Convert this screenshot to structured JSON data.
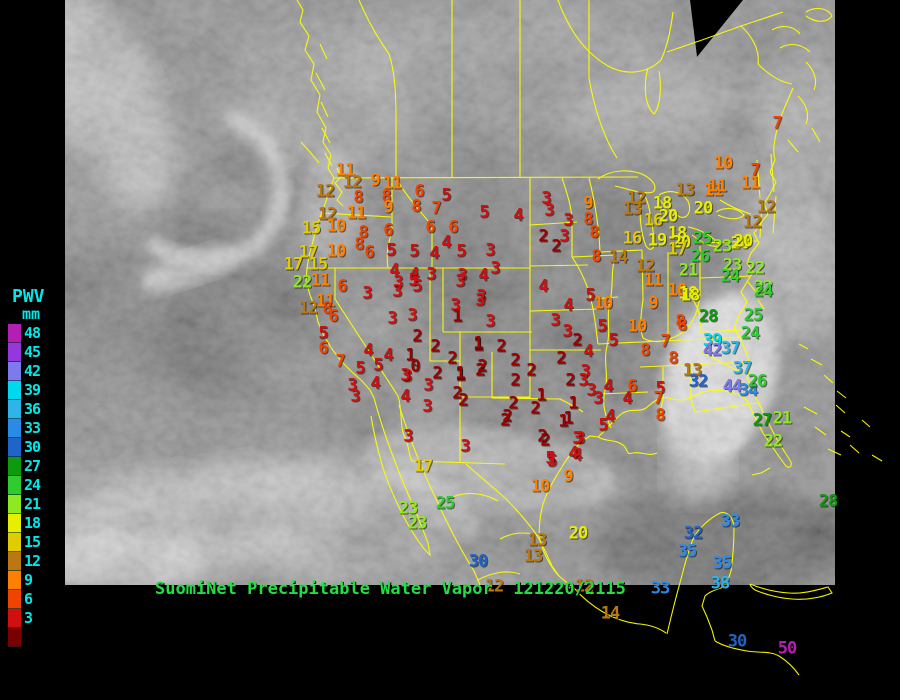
{
  "legend": {
    "title": "PWV",
    "unit": "mm",
    "text_color": "#00e8e8",
    "rows": [
      {
        "color": "#b31fb3",
        "label": "48"
      },
      {
        "color": "#9437dd",
        "label": "45"
      },
      {
        "color": "#7b7bee",
        "label": "42"
      },
      {
        "color": "#00d8ee",
        "label": "39"
      },
      {
        "color": "#2fb4e8",
        "label": "36"
      },
      {
        "color": "#2b8ae8",
        "label": "33"
      },
      {
        "color": "#1f64c8",
        "label": "30"
      },
      {
        "color": "#0e9a0e",
        "label": "27"
      },
      {
        "color": "#2ecc2e",
        "label": "24"
      },
      {
        "color": "#8ee822",
        "label": "21"
      },
      {
        "color": "#e8ee00",
        "label": "18"
      },
      {
        "color": "#e0cc00",
        "label": "15"
      },
      {
        "color": "#bb7711",
        "label": "12"
      },
      {
        "color": "#ff7f00",
        "label": "9"
      },
      {
        "color": "#ee4400",
        "label": "6"
      },
      {
        "color": "#d01010",
        "label": "3"
      },
      {
        "color": "#7a0000",
        "label": ""
      }
    ],
    "scale": [
      {
        "min": -9,
        "color": "#9b0000"
      },
      {
        "min": 3,
        "color": "#d01010"
      },
      {
        "min": 6,
        "color": "#ee4400"
      },
      {
        "min": 9,
        "color": "#ff7f00"
      },
      {
        "min": 12,
        "color": "#bb7711"
      },
      {
        "min": 15,
        "color": "#e0cc00"
      },
      {
        "min": 18,
        "color": "#e8ee00"
      },
      {
        "min": 21,
        "color": "#8ee822"
      },
      {
        "min": 24,
        "color": "#2ecc2e"
      },
      {
        "min": 27,
        "color": "#0e9a0e"
      },
      {
        "min": 30,
        "color": "#1f64c8"
      },
      {
        "min": 33,
        "color": "#2b8ae8"
      },
      {
        "min": 36,
        "color": "#2fb4e8"
      },
      {
        "min": 39,
        "color": "#00d8ee"
      },
      {
        "min": 42,
        "color": "#7b7bee"
      },
      {
        "min": 45,
        "color": "#9437dd"
      },
      {
        "min": 48,
        "color": "#b31fb3"
      }
    ]
  },
  "title": {
    "text": "SuomiNet Precipitable Water Vapor",
    "timestamp": "121220/2115",
    "color": "#22dd44"
  },
  "map": {
    "line_color": "#ffff00"
  },
  "stations": [
    [
      345,
      171,
      11
    ],
    [
      352,
      183,
      12
    ],
    [
      375,
      181,
      9
    ],
    [
      392,
      184,
      11
    ],
    [
      419,
      192,
      6
    ],
    [
      446,
      196,
      5
    ],
    [
      325,
      192,
      12
    ],
    [
      358,
      198,
      8
    ],
    [
      386,
      197,
      8
    ],
    [
      388,
      208,
      9
    ],
    [
      416,
      207,
      8
    ],
    [
      436,
      209,
      7
    ],
    [
      327,
      215,
      12
    ],
    [
      356,
      214,
      11
    ],
    [
      311,
      229,
      15
    ],
    [
      336,
      227,
      10
    ],
    [
      363,
      233,
      8
    ],
    [
      388,
      231,
      6
    ],
    [
      430,
      228,
      6
    ],
    [
      453,
      228,
      6
    ],
    [
      359,
      245,
      8
    ],
    [
      446,
      243,
      4
    ],
    [
      308,
      253,
      17
    ],
    [
      336,
      252,
      10
    ],
    [
      369,
      253,
      6
    ],
    [
      391,
      251,
      5
    ],
    [
      414,
      252,
      5
    ],
    [
      434,
      254,
      4
    ],
    [
      461,
      252,
      5
    ],
    [
      293,
      265,
      17
    ],
    [
      318,
      265,
      15
    ],
    [
      302,
      283,
      22
    ],
    [
      320,
      281,
      11
    ],
    [
      342,
      287,
      6
    ],
    [
      394,
      271,
      4
    ],
    [
      414,
      275,
      4
    ],
    [
      431,
      275,
      3
    ],
    [
      462,
      276,
      3
    ],
    [
      398,
      283,
      3
    ],
    [
      413,
      281,
      5
    ],
    [
      484,
      213,
      5
    ],
    [
      518,
      216,
      4
    ],
    [
      546,
      199,
      3
    ],
    [
      549,
      211,
      3
    ],
    [
      568,
      221,
      3
    ],
    [
      564,
      237,
      3
    ],
    [
      543,
      237,
      2
    ],
    [
      556,
      247,
      2
    ],
    [
      588,
      204,
      9
    ],
    [
      588,
      220,
      8
    ],
    [
      594,
      233,
      8
    ],
    [
      596,
      257,
      8
    ],
    [
      618,
      258,
      14
    ],
    [
      490,
      251,
      3
    ],
    [
      495,
      269,
      3
    ],
    [
      483,
      276,
      4
    ],
    [
      481,
      297,
      3
    ],
    [
      543,
      287,
      4
    ],
    [
      568,
      306,
      4
    ],
    [
      590,
      296,
      5
    ],
    [
      603,
      304,
      10
    ],
    [
      636,
      199,
      12
    ],
    [
      632,
      210,
      13
    ],
    [
      685,
      191,
      13
    ],
    [
      713,
      191,
      11
    ],
    [
      662,
      204,
      18
    ],
    [
      653,
      221,
      16
    ],
    [
      668,
      217,
      20
    ],
    [
      703,
      209,
      20
    ],
    [
      632,
      239,
      16
    ],
    [
      657,
      241,
      19
    ],
    [
      677,
      234,
      18
    ],
    [
      681,
      243,
      20
    ],
    [
      702,
      239,
      25
    ],
    [
      677,
      250,
      17
    ],
    [
      700,
      257,
      26
    ],
    [
      688,
      271,
      21
    ],
    [
      722,
      247,
      23
    ],
    [
      740,
      244,
      20
    ],
    [
      732,
      266,
      23
    ],
    [
      755,
      269,
      22
    ],
    [
      763,
      288,
      22
    ],
    [
      730,
      277,
      24
    ],
    [
      645,
      267,
      12
    ],
    [
      653,
      281,
      11
    ],
    [
      677,
      291,
      10
    ],
    [
      688,
      294,
      18
    ],
    [
      653,
      304,
      9
    ],
    [
      723,
      164,
      10
    ],
    [
      755,
      171,
      7
    ],
    [
      717,
      187,
      11
    ],
    [
      750,
      184,
      11
    ],
    [
      777,
      124,
      7
    ],
    [
      766,
      208,
      12
    ],
    [
      752,
      223,
      12
    ],
    [
      743,
      242,
      20
    ],
    [
      690,
      296,
      18
    ],
    [
      708,
      317,
      28
    ],
    [
      680,
      322,
      8
    ],
    [
      692,
      371,
      13
    ],
    [
      698,
      382,
      32
    ],
    [
      712,
      341,
      39
    ],
    [
      712,
      351,
      42
    ],
    [
      730,
      349,
      37
    ],
    [
      742,
      369,
      37
    ],
    [
      732,
      387,
      44
    ],
    [
      748,
      391,
      34
    ],
    [
      757,
      382,
      26
    ],
    [
      753,
      316,
      25
    ],
    [
      750,
      334,
      24
    ],
    [
      763,
      292,
      24
    ],
    [
      762,
      421,
      27
    ],
    [
      782,
      419,
      21
    ],
    [
      773,
      442,
      22
    ],
    [
      828,
      502,
      28
    ],
    [
      637,
      327,
      10
    ],
    [
      682,
      326,
      8
    ],
    [
      665,
      342,
      7
    ],
    [
      645,
      351,
      8
    ],
    [
      673,
      359,
      8
    ],
    [
      660,
      389,
      5
    ],
    [
      658,
      399,
      7
    ],
    [
      660,
      416,
      8
    ],
    [
      632,
      387,
      6
    ],
    [
      627,
      399,
      4
    ],
    [
      608,
      387,
      4
    ],
    [
      591,
      391,
      3
    ],
    [
      598,
      399,
      3
    ],
    [
      610,
      417,
      4
    ],
    [
      603,
      426,
      5
    ],
    [
      490,
      322,
      3
    ],
    [
      555,
      321,
      3
    ],
    [
      567,
      332,
      3
    ],
    [
      577,
      341,
      2
    ],
    [
      602,
      327,
      5
    ],
    [
      613,
      341,
      5
    ],
    [
      588,
      352,
      4
    ],
    [
      478,
      346,
      1
    ],
    [
      501,
      347,
      2
    ],
    [
      480,
      371,
      2
    ],
    [
      515,
      361,
      2
    ],
    [
      515,
      381,
      2
    ],
    [
      531,
      371,
      2
    ],
    [
      561,
      359,
      2
    ],
    [
      570,
      381,
      2
    ],
    [
      585,
      372,
      3
    ],
    [
      583,
      381,
      3
    ],
    [
      541,
      396,
      1
    ],
    [
      513,
      404,
      2
    ],
    [
      535,
      409,
      2
    ],
    [
      507,
      417,
      2
    ],
    [
      573,
      404,
      1
    ],
    [
      568,
      419,
      1
    ],
    [
      580,
      439,
      3
    ],
    [
      545,
      441,
      2
    ],
    [
      577,
      456,
      4
    ],
    [
      552,
      462,
      5
    ],
    [
      308,
      309,
      12
    ],
    [
      325,
      302,
      11
    ],
    [
      327,
      309,
      8
    ],
    [
      333,
      317,
      6
    ],
    [
      323,
      334,
      5
    ],
    [
      323,
      349,
      6
    ],
    [
      340,
      362,
      7
    ],
    [
      367,
      294,
      3
    ],
    [
      397,
      292,
      3
    ],
    [
      417,
      287,
      5
    ],
    [
      392,
      319,
      3
    ],
    [
      412,
      316,
      3
    ],
    [
      455,
      306,
      3
    ],
    [
      457,
      317,
      1
    ],
    [
      460,
      282,
      3
    ],
    [
      480,
      301,
      3
    ],
    [
      417,
      337,
      2
    ],
    [
      435,
      347,
      2
    ],
    [
      478,
      344,
      1
    ],
    [
      452,
      359,
      2
    ],
    [
      437,
      374,
      2
    ],
    [
      460,
      376,
      1
    ],
    [
      482,
      367,
      2
    ],
    [
      368,
      351,
      4
    ],
    [
      388,
      356,
      4
    ],
    [
      360,
      369,
      5
    ],
    [
      378,
      366,
      5
    ],
    [
      407,
      377,
      3
    ],
    [
      410,
      356,
      1
    ],
    [
      415,
      367,
      0
    ],
    [
      352,
      386,
      3
    ],
    [
      355,
      397,
      3
    ],
    [
      375,
      384,
      4
    ],
    [
      405,
      376,
      3
    ],
    [
      428,
      386,
      3
    ],
    [
      405,
      397,
      4
    ],
    [
      427,
      407,
      3
    ],
    [
      457,
      394,
      2
    ],
    [
      463,
      401,
      2
    ],
    [
      460,
      374,
      1
    ],
    [
      408,
      437,
      3
    ],
    [
      465,
      447,
      3
    ],
    [
      423,
      467,
      17
    ],
    [
      505,
      421,
      2
    ],
    [
      542,
      437,
      2
    ],
    [
      563,
      422,
      1
    ],
    [
      577,
      439,
      3
    ],
    [
      573,
      454,
      4
    ],
    [
      550,
      459,
      5
    ],
    [
      568,
      477,
      9
    ],
    [
      540,
      487,
      10
    ],
    [
      445,
      504,
      25
    ],
    [
      408,
      509,
      23
    ],
    [
      417,
      524,
      23
    ],
    [
      537,
      541,
      13
    ],
    [
      533,
      557,
      13
    ],
    [
      578,
      534,
      20
    ],
    [
      478,
      562,
      30
    ],
    [
      494,
      587,
      12
    ],
    [
      584,
      587,
      12
    ],
    [
      610,
      614,
      14
    ],
    [
      730,
      522,
      33
    ],
    [
      693,
      534,
      32
    ],
    [
      687,
      552,
      35
    ],
    [
      722,
      564,
      35
    ],
    [
      720,
      584,
      38
    ],
    [
      660,
      589,
      33
    ],
    [
      737,
      642,
      30
    ],
    [
      787,
      649,
      50
    ]
  ]
}
